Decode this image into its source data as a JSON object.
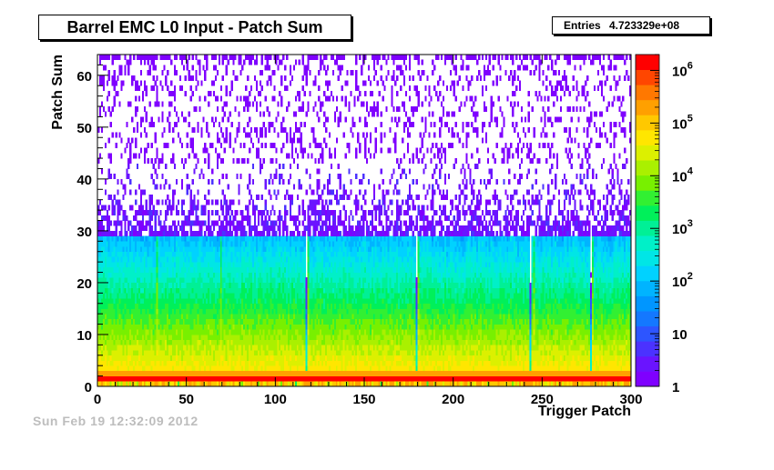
{
  "title": "Barrel EMC L0 Input - Patch Sum",
  "stats": {
    "label": "Entries",
    "value": "4.723329e+08"
  },
  "stamp": "Sun Feb 19 12:32:09 2012",
  "chart_data": {
    "type": "heatmap",
    "title": "Barrel EMC L0 Input - Patch Sum",
    "xlabel": "Trigger Patch",
    "ylabel": "Patch Sum",
    "xlim": [
      0,
      300
    ],
    "ylim": [
      0,
      64
    ],
    "x_ticks": [
      0,
      50,
      100,
      150,
      200,
      250,
      300
    ],
    "y_ticks": [
      0,
      10,
      20,
      30,
      40,
      50,
      60
    ],
    "z_scale": "log",
    "zlim": [
      1,
      2000000
    ],
    "z_ticks": [
      {
        "value": 1,
        "base": "1",
        "exp": ""
      },
      {
        "value": 10,
        "base": "10",
        "exp": ""
      },
      {
        "value": 100,
        "base": "10",
        "exp": "2"
      },
      {
        "value": 1000,
        "base": "10",
        "exp": "3"
      },
      {
        "value": 10000,
        "base": "10",
        "exp": "4"
      },
      {
        "value": 100000,
        "base": "10",
        "exp": "5"
      },
      {
        "value": 1000000,
        "base": "10",
        "exp": "6"
      }
    ],
    "entries": "4.723329e+08",
    "palette": [
      "#7f00ff",
      "#6a14ff",
      "#4b32ff",
      "#2d55ff",
      "#1478ff",
      "#0096ff",
      "#00b4ff",
      "#00d2ff",
      "#00e6e6",
      "#00f0c8",
      "#00f096",
      "#00f05a",
      "#32f032",
      "#78f000",
      "#aaf000",
      "#dcf000",
      "#ffe600",
      "#ffc800",
      "#ffa000",
      "#ff7800",
      "#ff4600",
      "#ff0000"
    ],
    "description_of_distribution": "Counts peak (~1e6) at Patch Sum 1-2 across all 300 patches, falling off roughly exponentially to ~1 count near Patch Sum 40; sparse isolated single-count cells extend up to Patch Sum 63."
  }
}
